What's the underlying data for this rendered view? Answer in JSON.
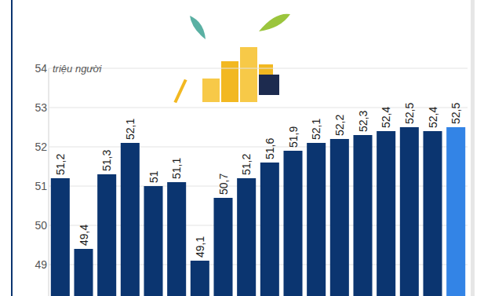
{
  "chart_data": {
    "type": "bar",
    "y_label": "triệu người",
    "categories": [
      null,
      null,
      null,
      null,
      null,
      null,
      null,
      null,
      null,
      null,
      null,
      null,
      null,
      null,
      null,
      null,
      null,
      null
    ],
    "values": [
      51.2,
      49.4,
      51.3,
      52.1,
      51,
      51.1,
      49.1,
      50.7,
      51.2,
      51.6,
      51.9,
      52.1,
      52.2,
      52.3,
      52.4,
      52.5,
      52.4,
      52.5
    ],
    "value_labels": [
      "51,2",
      "49,4",
      "51,3",
      "52,1",
      "51",
      "51,1",
      "49,1",
      "50,7",
      "51,2",
      "51,6",
      "51,9",
      "52,1",
      "52,2",
      "52,3",
      "52,4",
      "52,5",
      "52,4",
      "52,5"
    ],
    "colors": [
      "#0b3570",
      "#0b3570",
      "#0b3570",
      "#0b3570",
      "#0b3570",
      "#0b3570",
      "#0b3570",
      "#0b3570",
      "#0b3570",
      "#0b3570",
      "#0b3570",
      "#0b3570",
      "#0b3570",
      "#0b3570",
      "#0b3570",
      "#0b3570",
      "#0b3570",
      "#3384e6"
    ],
    "ylim": [
      48.2,
      54
    ],
    "yticks": [
      49,
      50,
      51,
      52,
      53,
      54
    ],
    "grid": true,
    "data_labels": true,
    "tick_labels": "y"
  }
}
